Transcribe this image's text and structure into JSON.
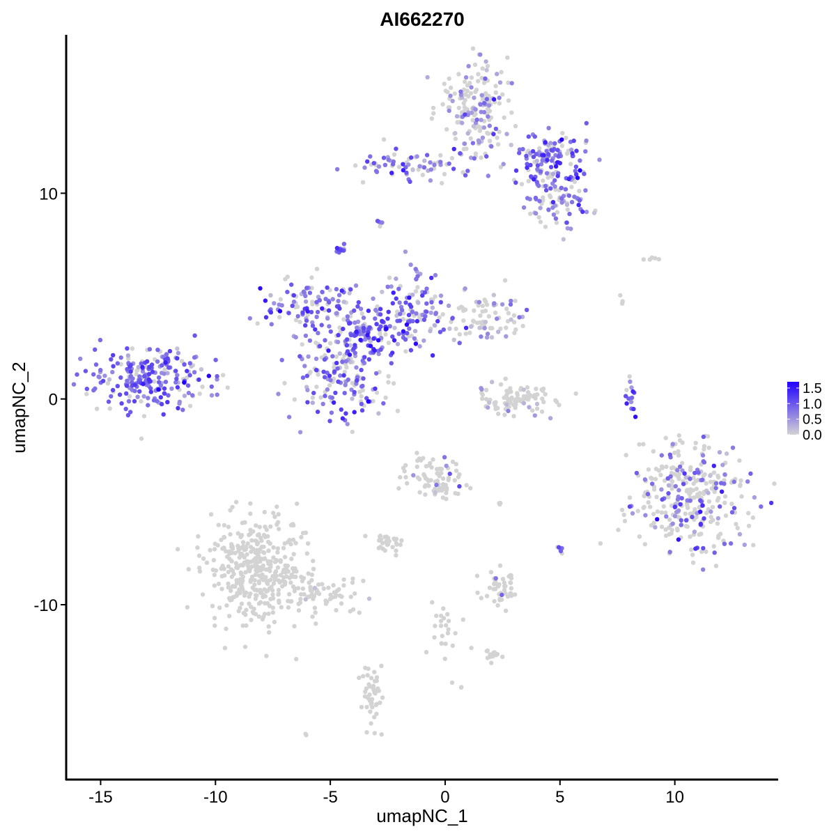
{
  "chart_data": {
    "type": "scatter",
    "title": "AI662270",
    "xlabel": "umapNC_1",
    "ylabel": "umapNC_2",
    "xlim": [
      -16.5,
      14.5
    ],
    "ylim": [
      -18.5,
      17.7
    ],
    "xticks": [
      -15,
      -10,
      -5,
      0,
      5,
      10
    ],
    "xtick_labels": [
      "-15",
      "-10",
      "-5",
      "0",
      "5",
      "10"
    ],
    "yticks": [
      -10,
      0,
      10
    ],
    "ytick_labels": [
      "-10",
      "0",
      "10"
    ],
    "grid": false,
    "color_scale": {
      "low": "#d3d3d3",
      "high": "#2200ff",
      "min": 0,
      "max": 1.7,
      "ticks": [
        0.0,
        0.5,
        1.0,
        1.5
      ],
      "tick_labels": [
        "0.0",
        "0.5",
        "1.0",
        "1.5"
      ]
    },
    "legend_position": "right",
    "clusters": [
      {
        "center": [
          -12.8,
          1.1
        ],
        "spread": [
          1.2,
          0.75
        ],
        "n": 240,
        "expr": 0.85,
        "pos_frac": 0.82
      },
      {
        "center": [
          -4.5,
          1.2
        ],
        "spread": [
          1.1,
          1.1
        ],
        "n": 160,
        "expr": 0.75,
        "pos_frac": 0.6
      },
      {
        "center": [
          -3.3,
          3.2
        ],
        "spread": [
          0.9,
          0.8
        ],
        "n": 140,
        "expr": 0.9,
        "pos_frac": 0.75
      },
      {
        "center": [
          -5.8,
          4.6
        ],
        "spread": [
          1.1,
          0.7
        ],
        "n": 110,
        "expr": 0.8,
        "pos_frac": 0.7
      },
      {
        "center": [
          -1.2,
          4.8
        ],
        "spread": [
          0.6,
          1.1
        ],
        "n": 80,
        "expr": 0.8,
        "pos_frac": 0.7
      },
      {
        "center": [
          1.6,
          4.0
        ],
        "spread": [
          1.2,
          0.55
        ],
        "n": 90,
        "expr": 0.55,
        "pos_frac": 0.4
      },
      {
        "center": [
          -4.6,
          7.3
        ],
        "spread": [
          0.15,
          0.12
        ],
        "n": 12,
        "expr": 0.9,
        "pos_frac": 1.0
      },
      {
        "center": [
          1.3,
          14.1
        ],
        "spread": [
          0.8,
          1.1
        ],
        "n": 180,
        "expr": 0.6,
        "pos_frac": 0.35
      },
      {
        "center": [
          -1.5,
          11.3
        ],
        "spread": [
          1.3,
          0.35
        ],
        "n": 70,
        "expr": 0.8,
        "pos_frac": 0.6
      },
      {
        "center": [
          4.5,
          11.4
        ],
        "spread": [
          0.9,
          0.8
        ],
        "n": 150,
        "expr": 0.85,
        "pos_frac": 0.7
      },
      {
        "center": [
          5.1,
          9.5
        ],
        "spread": [
          0.6,
          0.6
        ],
        "n": 60,
        "expr": 0.75,
        "pos_frac": 0.6
      },
      {
        "center": [
          3.2,
          0.0
        ],
        "spread": [
          0.9,
          0.45
        ],
        "n": 90,
        "expr": 0.4,
        "pos_frac": 0.12
      },
      {
        "center": [
          8.1,
          0.3
        ],
        "spread": [
          0.12,
          0.6
        ],
        "n": 14,
        "expr": 0.9,
        "pos_frac": 0.8
      },
      {
        "center": [
          10.7,
          -4.8
        ],
        "spread": [
          1.3,
          1.3
        ],
        "n": 320,
        "expr": 0.75,
        "pos_frac": 0.35
      },
      {
        "center": [
          -8.3,
          -8.2
        ],
        "spread": [
          1.1,
          1.3
        ],
        "n": 380,
        "expr": 0.0,
        "pos_frac": 0.003
      },
      {
        "center": [
          -5.5,
          -9.6
        ],
        "spread": [
          1.1,
          0.45
        ],
        "n": 70,
        "expr": 0.0,
        "pos_frac": 0.02
      },
      {
        "center": [
          -0.5,
          -3.9
        ],
        "spread": [
          0.55,
          0.55
        ],
        "n": 80,
        "expr": 0.6,
        "pos_frac": 0.07
      },
      {
        "center": [
          -2.5,
          -6.9
        ],
        "spread": [
          0.35,
          0.2
        ],
        "n": 30,
        "expr": 0.0,
        "pos_frac": 0.0
      },
      {
        "center": [
          2.5,
          -9.2
        ],
        "spread": [
          0.45,
          0.45
        ],
        "n": 45,
        "expr": 0.8,
        "pos_frac": 0.03
      },
      {
        "center": [
          -3.2,
          -14.4
        ],
        "spread": [
          0.22,
          0.8
        ],
        "n": 45,
        "expr": 0.0,
        "pos_frac": 0.0
      },
      {
        "center": [
          0.0,
          -11.2
        ],
        "spread": [
          0.45,
          0.8
        ],
        "n": 25,
        "expr": 0.0,
        "pos_frac": 0.0
      },
      {
        "center": [
          2.2,
          -12.4
        ],
        "spread": [
          0.3,
          0.2
        ],
        "n": 15,
        "expr": 0.0,
        "pos_frac": 0.0
      },
      {
        "center": [
          2.4,
          -5.1
        ],
        "spread": [
          0.05,
          0.05
        ],
        "n": 3,
        "expr": 0.0,
        "pos_frac": 0.0
      },
      {
        "center": [
          5.0,
          -7.3
        ],
        "spread": [
          0.1,
          0.1
        ],
        "n": 6,
        "expr": 0.7,
        "pos_frac": 0.3
      },
      {
        "center": [
          -2.8,
          8.6
        ],
        "spread": [
          0.1,
          0.15
        ],
        "n": 5,
        "expr": 0.6,
        "pos_frac": 0.5
      },
      {
        "center": [
          9.3,
          6.8
        ],
        "spread": [
          0.6,
          0.1
        ],
        "n": 5,
        "expr": 0.0,
        "pos_frac": 0.0
      },
      {
        "center": [
          7.7,
          4.7
        ],
        "spread": [
          0.05,
          0.1
        ],
        "n": 3,
        "expr": 0.0,
        "pos_frac": 0.0
      },
      {
        "center": [
          -6.0,
          -16.3
        ],
        "spread": [
          0.05,
          0.05
        ],
        "n": 2,
        "expr": 0.0,
        "pos_frac": 0.0
      },
      {
        "center": [
          0.7,
          -14.0
        ],
        "spread": [
          0.05,
          0.05
        ],
        "n": 2,
        "expr": 0.0,
        "pos_frac": 0.0
      }
    ]
  }
}
